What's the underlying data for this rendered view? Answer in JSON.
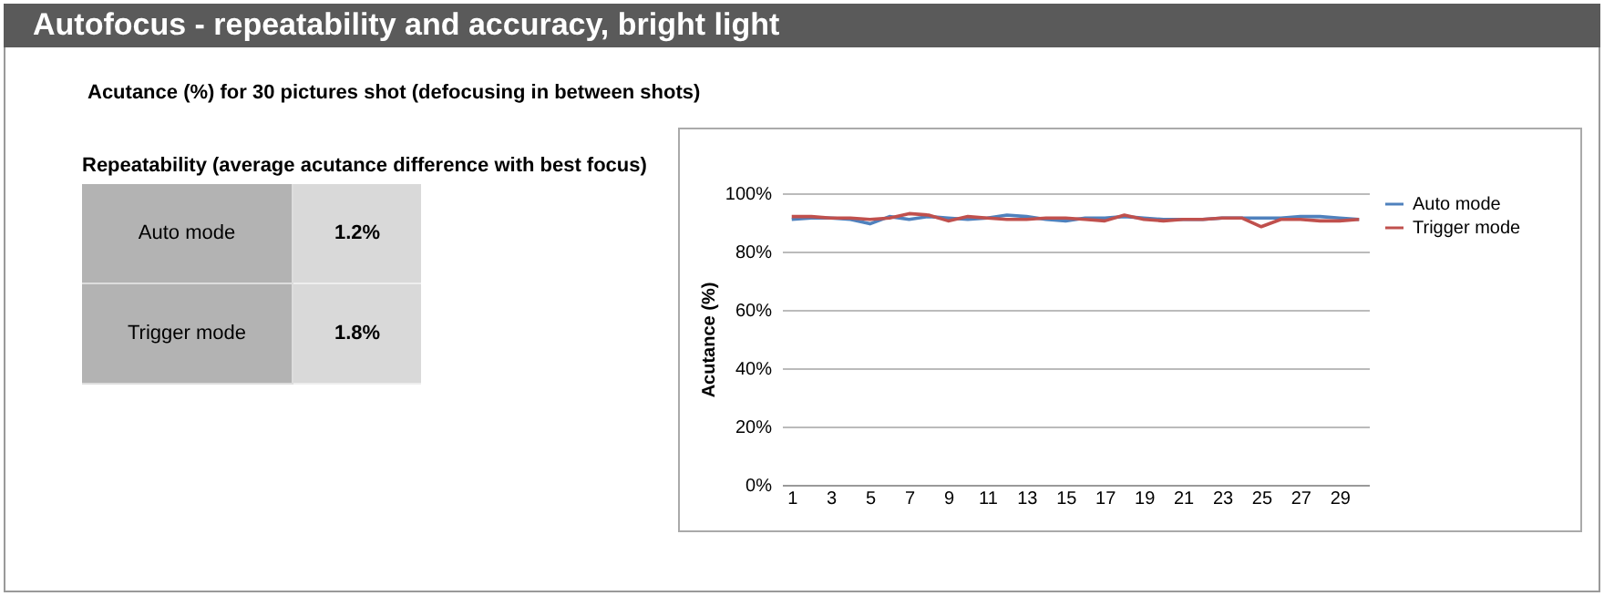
{
  "chart_data": [
    {
      "type": "other",
      "title": "Autofocus - repeatability and accuracy, bright light",
      "subtitle": "Acutance (%) for 30 pictures shot (defocusing in between shots)",
      "annotations": [
        "Repeatability (average acutance difference with best focus)"
      ],
      "categories": [
        "Auto mode",
        "Trigger mode"
      ],
      "value_labels": [
        "1.2%",
        "1.8%"
      ]
    },
    {
      "type": "line",
      "ylabel": "Acutance (%)",
      "x": [
        1,
        2,
        3,
        4,
        5,
        6,
        7,
        8,
        9,
        10,
        11,
        12,
        13,
        14,
        15,
        16,
        17,
        18,
        19,
        20,
        21,
        22,
        23,
        24,
        25,
        26,
        27,
        28,
        29,
        30
      ],
      "series": [
        {
          "name": "Auto mode",
          "color": "#4f81bd",
          "values": [
            91,
            91.5,
            91.5,
            91,
            89.5,
            92,
            91,
            92,
            91.5,
            91,
            91.5,
            92.5,
            92,
            91,
            90.5,
            91.5,
            91.5,
            92,
            91.5,
            91,
            91,
            91,
            91.5,
            91.5,
            91.5,
            91.5,
            92,
            92,
            91.5,
            91
          ]
        },
        {
          "name": "Trigger mode",
          "color": "#c0504d",
          "values": [
            92,
            92,
            91.5,
            91.5,
            91,
            91.5,
            93,
            92.5,
            90.5,
            92,
            91.5,
            91,
            91,
            91.5,
            91.5,
            91,
            90.5,
            92.5,
            91,
            90.5,
            91,
            91,
            91.5,
            91.5,
            88.5,
            91,
            91,
            90.5,
            90.5,
            91
          ]
        }
      ],
      "xlim": [
        0.5,
        30.5
      ],
      "xticks": [
        1,
        3,
        5,
        7,
        9,
        11,
        13,
        15,
        17,
        19,
        21,
        23,
        25,
        27,
        29
      ],
      "ylim": [
        0,
        100
      ],
      "yticks": [
        {
          "value": 0,
          "label": "0%"
        },
        {
          "value": 20,
          "label": "20%"
        },
        {
          "value": 40,
          "label": "40%"
        },
        {
          "value": 60,
          "label": "60%"
        },
        {
          "value": 80,
          "label": "80%"
        },
        {
          "value": 100,
          "label": "100%"
        }
      ],
      "grid": "y",
      "legend": "right",
      "line_style": "solid"
    }
  ]
}
